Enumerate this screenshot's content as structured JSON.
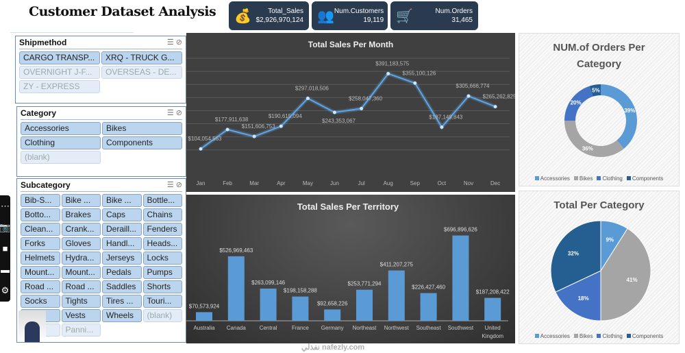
{
  "title": "Customer Dataset Analysis",
  "kpis": [
    {
      "label": "Total_Sales",
      "value": "$2,926,970,124",
      "icon": "money-bag-icon"
    },
    {
      "label": "Num.Customers",
      "value": "19,119",
      "icon": "customers-growth-icon"
    },
    {
      "label": "Num.Orders",
      "value": "31,465",
      "icon": "shopping-cart-icon"
    }
  ],
  "slicers": {
    "shipmethod": {
      "title": "Shipmethod",
      "items": [
        {
          "label": "CARGO TRANSP...",
          "on": true
        },
        {
          "label": "XRQ - TRUCK G...",
          "on": true
        },
        {
          "label": "OVERNIGHT J-F...",
          "on": false
        },
        {
          "label": "OVERSEAS - DE...",
          "on": false
        },
        {
          "label": "ZY - EXPRESS",
          "on": false
        }
      ]
    },
    "category": {
      "title": "Category",
      "items": [
        {
          "label": "Accessories",
          "on": true
        },
        {
          "label": "Bikes",
          "on": true
        },
        {
          "label": "Clothing",
          "on": true
        },
        {
          "label": "Components",
          "on": true
        },
        {
          "label": "(blank)",
          "on": false
        }
      ]
    },
    "subcategory": {
      "title": "Subcategory",
      "items": [
        {
          "label": "Bib-S...",
          "on": true
        },
        {
          "label": "Bike ...",
          "on": true
        },
        {
          "label": "Bike ...",
          "on": true
        },
        {
          "label": "Bottle...",
          "on": true
        },
        {
          "label": "Botto...",
          "on": true
        },
        {
          "label": "Brakes",
          "on": true
        },
        {
          "label": "Caps",
          "on": true
        },
        {
          "label": "Chains",
          "on": true
        },
        {
          "label": "Clean...",
          "on": true
        },
        {
          "label": "Crank...",
          "on": true
        },
        {
          "label": "Deraill...",
          "on": true
        },
        {
          "label": "Fenders",
          "on": true
        },
        {
          "label": "Forks",
          "on": true
        },
        {
          "label": "Gloves",
          "on": true
        },
        {
          "label": "Handl...",
          "on": true
        },
        {
          "label": "Heads...",
          "on": true
        },
        {
          "label": "Helmets",
          "on": true
        },
        {
          "label": "Hydra...",
          "on": true
        },
        {
          "label": "Jerseys",
          "on": true
        },
        {
          "label": "Locks",
          "on": true
        },
        {
          "label": "Mount...",
          "on": true
        },
        {
          "label": "Mount...",
          "on": true
        },
        {
          "label": "Pedals",
          "on": true
        },
        {
          "label": "Pumps",
          "on": true
        },
        {
          "label": "Road ...",
          "on": true
        },
        {
          "label": "Road ...",
          "on": true
        },
        {
          "label": "Saddles",
          "on": true
        },
        {
          "label": "Shorts",
          "on": true
        },
        {
          "label": "Socks",
          "on": true
        },
        {
          "label": "Tights",
          "on": true
        },
        {
          "label": "Tires ...",
          "on": true
        },
        {
          "label": "Touri...",
          "on": true
        },
        {
          "label": "...",
          "on": true
        },
        {
          "label": "Vests",
          "on": true
        },
        {
          "label": "Wheels",
          "on": true
        },
        {
          "label": "(blank)",
          "on": false
        },
        {
          "label": "s",
          "on": false
        },
        {
          "label": "Panni...",
          "on": false
        }
      ]
    }
  },
  "watermark": "نفذلي nafezly.com",
  "colors": {
    "accessories": "#5b9bd5",
    "bikes": "#a5a5a5",
    "clothing": "#4472c4",
    "components": "#255e91",
    "line": "#5ea6e8"
  },
  "chart_data": [
    {
      "type": "line",
      "title": "Total  Sales Per Month",
      "categories": [
        "Jan",
        "Feb",
        "Mar",
        "Apr",
        "May",
        "Jun",
        "Jul",
        "Aug",
        "Sep",
        "Oct",
        "Nov",
        "Dec"
      ],
      "values": [
        104054563,
        177911638,
        151606753,
        190615094,
        297018506,
        243353067,
        258047360,
        391183575,
        355100126,
        187149843,
        305666774,
        265262825
      ],
      "labels": [
        "$104,054,563",
        "$177,911,638",
        "$151,606,753",
        "$190,615,094",
        "$297,018,506",
        "$243,353,067",
        "$258,047,360",
        "$391,183,575",
        "$355,100,126",
        "$187,149,843",
        "$305,666,774",
        "$265,262,825"
      ],
      "ylim": [
        0,
        450000000
      ],
      "grid": true
    },
    {
      "type": "bar",
      "title": "Total Sales Per Territory",
      "categories": [
        "Australia",
        "Canada",
        "Central",
        "France",
        "Germany",
        "Northeast",
        "Northwest",
        "Southeast",
        "Southwest",
        "United Kingdom"
      ],
      "values": [
        70573924,
        526969463,
        263099146,
        198158288,
        92658226,
        253771294,
        411207275,
        226427460,
        696896626,
        187208422
      ],
      "labels": [
        "$70,573,924",
        "$526,969,463",
        "$263,099,146",
        "$198,158,288",
        "$92,658,226",
        "$253,771,294",
        "$411,207,275",
        "$226,427,460",
        "$696,896,626",
        "$187,208,422"
      ],
      "ylim": [
        0,
        700000000
      ]
    },
    {
      "type": "pie",
      "variant": "donut",
      "title": "NUM.of Orders Per Category",
      "categories": [
        "Accessories",
        "Bikes",
        "Clothing",
        "Components"
      ],
      "values": [
        39,
        36,
        20,
        5
      ],
      "labels": [
        "39%",
        "36%",
        "20%",
        "5%"
      ],
      "legend": "bottom"
    },
    {
      "type": "pie",
      "title": "Total Per Category",
      "categories": [
        "Accessories",
        "Bikes",
        "Clothing",
        "Components"
      ],
      "values": [
        9,
        41,
        18,
        32
      ],
      "labels": [
        "9%",
        "41%",
        "18%",
        "32%"
      ],
      "legend": "bottom"
    }
  ]
}
